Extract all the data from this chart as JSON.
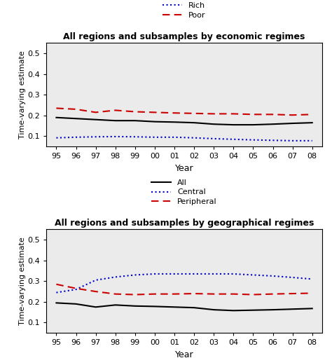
{
  "years": [
    95,
    96,
    97,
    98,
    99,
    0,
    1,
    2,
    3,
    4,
    5,
    6,
    7,
    8
  ],
  "year_labels": [
    "95",
    "96",
    "97",
    "98",
    "99",
    "00",
    "01",
    "02",
    "03",
    "04",
    "05",
    "06",
    "07",
    "08"
  ],
  "econ_title": "All regions and subsamples by economic regimes",
  "econ_all": [
    0.19,
    0.185,
    0.18,
    0.175,
    0.175,
    0.17,
    0.168,
    0.165,
    0.158,
    0.155,
    0.155,
    0.158,
    0.162,
    0.165
  ],
  "econ_rich": [
    0.092,
    0.095,
    0.097,
    0.098,
    0.097,
    0.095,
    0.095,
    0.092,
    0.088,
    0.085,
    0.082,
    0.08,
    0.078,
    0.078
  ],
  "econ_poor": [
    0.235,
    0.23,
    0.215,
    0.225,
    0.218,
    0.215,
    0.212,
    0.21,
    0.208,
    0.208,
    0.205,
    0.205,
    0.202,
    0.205
  ],
  "geo_title": "All regions and subsamples by geographical regimes",
  "geo_all": [
    0.195,
    0.19,
    0.175,
    0.185,
    0.18,
    0.178,
    0.175,
    0.172,
    0.162,
    0.158,
    0.16,
    0.162,
    0.165,
    0.168
  ],
  "geo_central": [
    0.245,
    0.26,
    0.305,
    0.32,
    0.33,
    0.335,
    0.335,
    0.335,
    0.335,
    0.335,
    0.33,
    0.325,
    0.318,
    0.31
  ],
  "geo_peripheral": [
    0.285,
    0.265,
    0.25,
    0.238,
    0.235,
    0.238,
    0.238,
    0.24,
    0.238,
    0.238,
    0.235,
    0.238,
    0.24,
    0.242
  ],
  "color_all": "#000000",
  "color_dotted": "#0000cc",
  "color_dashed": "#cc0000",
  "ylim": [
    0.05,
    0.55
  ],
  "yticks": [
    0.1,
    0.2,
    0.3,
    0.4,
    0.5
  ],
  "ytick_labels": [
    "0.1",
    "0.2",
    "0.3",
    "0.4",
    "0.5"
  ],
  "ylabel": "Time-varying estimate",
  "xlabel": "Year",
  "bg_color": "#ebebeb"
}
